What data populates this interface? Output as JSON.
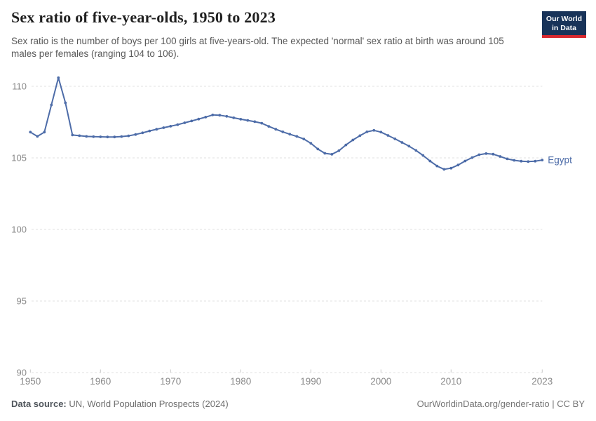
{
  "header": {
    "title": "Sex ratio of five-year-olds, 1950 to 2023",
    "subtitle": "Sex ratio is the number of boys per 100 girls at five-years-old. The expected 'normal' sex ratio at birth was around 105 males per females (ranging 104 to 106).",
    "logo": {
      "line1": "Our World",
      "line2": "in Data"
    }
  },
  "footer": {
    "source_label": "Data source:",
    "source_text": " UN, World Population Prospects (2024)",
    "link_text": "OurWorldinData.org/gender-ratio | CC BY"
  },
  "colors": {
    "line": "#4d6ca8",
    "series_label": "#4d6ca8",
    "grid": "#e2e2e2",
    "tick": "#c9c9c9",
    "axis_text": "#8a8a8a",
    "title_text": "#1f1f1f",
    "logo_bg": "#183359",
    "logo_red": "#d7282f"
  },
  "chart_data": {
    "type": "line",
    "title": "Sex ratio of five-year-olds, 1950 to 2023",
    "series": [
      {
        "name": "Egypt",
        "x": [
          1950,
          1951,
          1952,
          1953,
          1954,
          1955,
          1956,
          1957,
          1958,
          1959,
          1960,
          1961,
          1962,
          1963,
          1964,
          1965,
          1966,
          1967,
          1968,
          1969,
          1970,
          1971,
          1972,
          1973,
          1974,
          1975,
          1976,
          1977,
          1978,
          1979,
          1980,
          1981,
          1982,
          1983,
          1984,
          1985,
          1986,
          1987,
          1988,
          1989,
          1990,
          1991,
          1992,
          1993,
          1994,
          1995,
          1996,
          1997,
          1998,
          1999,
          2000,
          2001,
          2002,
          2003,
          2004,
          2005,
          2006,
          2007,
          2008,
          2009,
          2010,
          2011,
          2012,
          2013,
          2014,
          2015,
          2016,
          2017,
          2018,
          2019,
          2020,
          2021,
          2022,
          2023
        ],
        "values": [
          106.8,
          106.5,
          106.8,
          108.7,
          110.6,
          108.85,
          106.6,
          106.55,
          106.5,
          106.48,
          106.47,
          106.46,
          106.46,
          106.49,
          106.54,
          106.63,
          106.75,
          106.88,
          107.0,
          107.11,
          107.21,
          107.32,
          107.45,
          107.58,
          107.71,
          107.85,
          108.0,
          107.98,
          107.9,
          107.8,
          107.7,
          107.62,
          107.53,
          107.42,
          107.2,
          107.0,
          106.82,
          106.65,
          106.5,
          106.32,
          106.02,
          105.62,
          105.32,
          105.25,
          105.5,
          105.9,
          106.25,
          106.55,
          106.82,
          106.92,
          106.8,
          106.57,
          106.33,
          106.08,
          105.82,
          105.52,
          105.17,
          104.78,
          104.43,
          104.2,
          104.28,
          104.5,
          104.78,
          105.02,
          105.22,
          105.3,
          105.26,
          105.1,
          104.93,
          104.83,
          104.77,
          104.74,
          104.77,
          104.85
        ]
      }
    ],
    "series_label": "Egypt",
    "xlabel": "",
    "ylabel": "",
    "x_ticks": [
      1950,
      1960,
      1970,
      1980,
      1990,
      2000,
      2010,
      2023
    ],
    "y_ticks": [
      90,
      95,
      100,
      105,
      110
    ],
    "xlim": [
      1950,
      2023
    ],
    "ylim": [
      90,
      111.5
    ],
    "grid": "horizontal-dashed",
    "legend_position": "end-of-line-label",
    "marker": "dot-every-year"
  }
}
